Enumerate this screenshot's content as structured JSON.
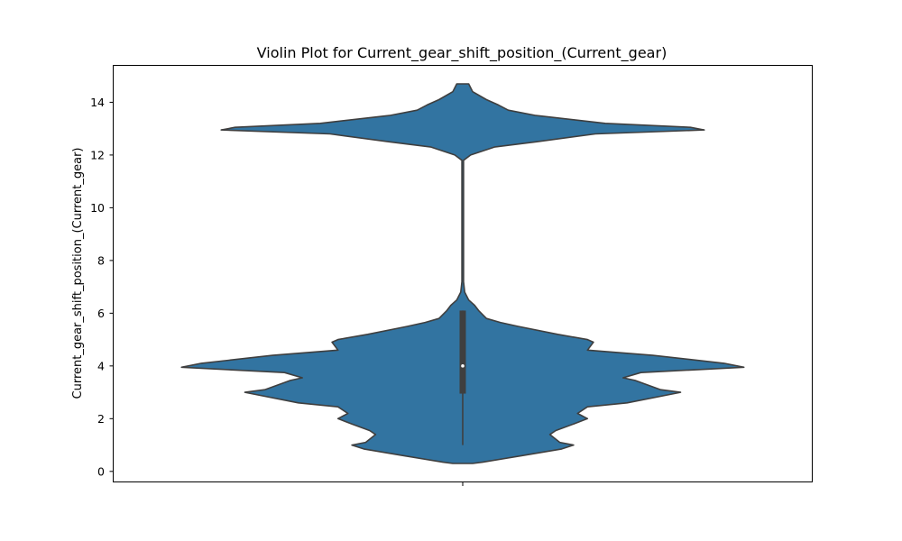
{
  "chart_data": {
    "type": "violin",
    "title": "Violin Plot for Current_gear_shift_position_(Current_gear)",
    "xlabel": "",
    "ylabel": "Current_gear_shift_position_(Current_gear)",
    "ylim": [
      -0.4,
      15.4
    ],
    "yticks": [
      "0",
      "2",
      "4",
      "6",
      "8",
      "10",
      "12",
      "14"
    ],
    "xticks": [
      ""
    ],
    "grid": false,
    "colors": {
      "fill": "#3274a1",
      "edge": "#3f3f3f",
      "box": "#3f3f3f",
      "median": "#ffffff"
    },
    "density_profile": {
      "y": [
        0.3,
        0.35,
        0.6,
        0.85,
        1.0,
        1.1,
        1.4,
        1.55,
        1.8,
        2.0,
        2.2,
        2.45,
        2.6,
        3.0,
        3.1,
        3.45,
        3.55,
        3.75,
        3.95,
        4.1,
        4.4,
        4.6,
        4.9,
        5.0,
        5.2,
        5.5,
        5.65,
        5.8,
        6.1,
        6.3,
        6.5,
        6.8,
        7.2,
        8.0,
        10.0,
        11.8,
        12.0,
        12.3,
        12.5,
        12.8,
        12.95,
        13.05,
        13.2,
        13.5,
        13.7,
        13.9,
        14.1,
        14.4,
        14.7
      ],
      "half_width": [
        0.05,
        0.1,
        0.3,
        0.5,
        0.56,
        0.49,
        0.44,
        0.47,
        0.56,
        0.63,
        0.58,
        0.63,
        0.83,
        1.1,
        1.0,
        0.87,
        0.81,
        0.9,
        1.42,
        1.32,
        0.96,
        0.63,
        0.66,
        0.63,
        0.48,
        0.28,
        0.19,
        0.12,
        0.08,
        0.06,
        0.03,
        0.01,
        0.004,
        0.004,
        0.004,
        0.004,
        0.04,
        0.16,
        0.37,
        0.67,
        1.22,
        1.15,
        0.72,
        0.37,
        0.23,
        0.18,
        0.12,
        0.05,
        0.03
      ]
    },
    "box": {
      "q1": 2.95,
      "median": 4.0,
      "q3": 6.1,
      "whisker_low": 1.0,
      "whisker_high": 6.1
    }
  }
}
